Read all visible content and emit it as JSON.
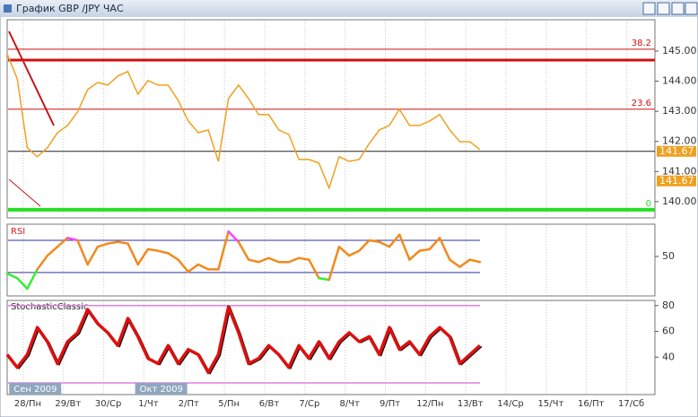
{
  "chart_data": [
    {
      "type": "line",
      "title": "График GBP /JPY  ЧАС",
      "x": [
        0,
        0.25,
        0.5,
        0.75,
        1,
        1.25,
        1.5,
        1.75,
        2,
        2.25,
        2.5,
        2.75,
        3,
        3.25,
        3.5,
        3.75,
        4,
        4.25,
        4.5,
        4.75,
        5,
        5.25,
        5.5,
        5.75,
        6,
        6.25,
        6.5,
        6.75,
        7,
        7.25,
        7.5,
        7.75,
        8,
        8.25,
        8.5,
        8.75,
        9,
        9.25,
        9.5,
        9.75,
        10,
        10.25,
        10.5,
        10.75,
        11,
        11.25,
        11.5,
        11.75
      ],
      "series": [
        {
          "color": "#f0a020",
          "values": [
            144.91,
            144.08,
            141.79,
            141.49,
            141.79,
            142.29,
            142.53,
            142.98,
            143.72,
            143.96,
            143.87,
            144.17,
            144.32,
            143.57,
            144.02,
            143.87,
            143.87,
            143.36,
            142.68,
            142.29,
            142.38,
            141.34,
            143.42,
            143.87,
            143.42,
            142.89,
            142.89,
            142.38,
            142.23,
            141.4,
            141.4,
            141.28,
            140.45,
            141.49,
            141.34,
            141.4,
            141.93,
            142.38,
            142.53,
            143.07,
            142.53,
            142.53,
            142.68,
            142.89,
            142.38,
            141.99,
            141.99,
            141.73
          ]
        }
      ],
      "xlim": [
        0,
        16.1
      ],
      "ylim": [
        139.46,
        146.04
      ],
      "yticks": [
        {
          "value": 140,
          "label": "140.00"
        },
        {
          "value": 141,
          "label": "141.00"
        },
        {
          "value": 142,
          "label": "142.00"
        },
        {
          "value": 143,
          "label": "143.00"
        },
        {
          "value": 144,
          "label": "144.00"
        },
        {
          "value": 145,
          "label": "145.00"
        }
      ],
      "levels": [
        {
          "value": 145.06,
          "label": "38.2",
          "color": "#d01010",
          "width": 1
        },
        {
          "value": 144.7,
          "color": "#d01010",
          "width": 3
        },
        {
          "value": 143.07,
          "label": "23.6",
          "color": "#d01010",
          "width": 1
        },
        {
          "value": 139.73,
          "label": "0",
          "color": "#22e022",
          "width": 4
        }
      ],
      "current_price": 141.67,
      "price_tags": [
        141.67,
        141.67
      ]
    },
    {
      "type": "rsi",
      "title": "RSI",
      "x": [
        0,
        0.25,
        0.5,
        0.75,
        1,
        1.25,
        1.5,
        1.75,
        2,
        2.25,
        2.5,
        2.75,
        3,
        3.25,
        3.5,
        3.75,
        4,
        4.25,
        4.5,
        4.75,
        5,
        5.25,
        5.5,
        5.75,
        6,
        6.25,
        6.5,
        6.75,
        7,
        7.25,
        7.5,
        7.75,
        8,
        8.25,
        8.5,
        8.75,
        9,
        9.25,
        9.5,
        9.75,
        10,
        10.25,
        10.5,
        10.75,
        11,
        11.25,
        11.5,
        11.75
      ],
      "values": [
        29,
        23,
        10,
        34,
        51,
        62,
        73,
        70,
        40,
        62,
        66,
        68,
        66,
        40,
        59,
        57,
        54,
        46,
        31,
        40,
        34,
        34,
        81,
        68,
        46,
        43,
        48,
        43,
        43,
        48,
        46,
        23,
        21,
        62,
        51,
        57,
        70,
        68,
        62,
        77,
        46,
        57,
        59,
        73,
        46,
        37,
        46,
        43
      ],
      "xlim": [
        0,
        16.1
      ],
      "ylim": [
        1,
        90
      ],
      "yticks": [
        50
      ],
      "levels": [
        30,
        70
      ],
      "level_color": "#3030a0",
      "colors": {
        "low": "#33ee33",
        "mid": "#f28a1d",
        "high": "#ff44ff"
      }
    },
    {
      "type": "stochastic",
      "title": "StochasticClassic",
      "x": [
        0,
        0.25,
        0.5,
        0.75,
        1,
        1.25,
        1.5,
        1.75,
        2,
        2.25,
        2.5,
        2.75,
        3,
        3.25,
        3.5,
        3.75,
        4,
        4.25,
        4.5,
        4.75,
        5,
        5.25,
        5.5,
        5.75,
        6,
        6.25,
        6.5,
        6.75,
        7,
        7.25,
        7.5,
        7.75,
        8,
        8.25,
        8.5,
        8.75,
        9,
        9.25,
        9.5,
        9.75,
        10,
        10.25,
        10.5,
        10.75,
        11,
        11.25,
        11.5,
        11.75
      ],
      "series": [
        {
          "color": "#dd1010",
          "values": [
            42,
            32,
            42,
            63,
            52,
            35,
            52,
            59,
            77,
            66,
            59,
            49,
            70,
            56,
            39,
            35,
            49,
            35,
            46,
            42,
            28,
            42,
            79,
            59,
            35,
            39,
            49,
            42,
            32,
            49,
            39,
            52,
            39,
            52,
            59,
            52,
            56,
            42,
            63,
            46,
            52,
            42,
            56,
            63,
            56,
            35,
            42,
            49
          ]
        }
      ],
      "xlim": [
        0,
        16.1
      ],
      "ylim": [
        11,
        84
      ],
      "yticks": [
        40,
        60,
        80
      ],
      "levels": [
        20,
        80
      ],
      "level_color": "#e080e0",
      "xticks": [
        {
          "value": 0.4,
          "label": "28/Пн"
        },
        {
          "value": 1.4,
          "label": "29/Вт"
        },
        {
          "value": 2.4,
          "label": "30/Ср"
        },
        {
          "value": 3.4,
          "label": "1/Чт"
        },
        {
          "value": 4.4,
          "label": "2/Пт"
        },
        {
          "value": 5.4,
          "label": "5/Пн"
        },
        {
          "value": 6.4,
          "label": "6/Вт"
        },
        {
          "value": 7.4,
          "label": "7/Ср"
        },
        {
          "value": 8.4,
          "label": "8/Чт"
        },
        {
          "value": 9.4,
          "label": "9/Пт"
        },
        {
          "value": 10.4,
          "label": "12/Пн"
        },
        {
          "value": 11.4,
          "label": "13/Вт"
        },
        {
          "value": 12.4,
          "label": "14/Ср"
        },
        {
          "value": 13.4,
          "label": "15/Чт"
        },
        {
          "value": 14.4,
          "label": "16/Пт"
        },
        {
          "value": 15.4,
          "label": "17/Сб"
        }
      ],
      "month_labels": [
        {
          "value": 0.05,
          "label": "Сен 2009"
        },
        {
          "value": 3.18,
          "label": "Окт 2009"
        }
      ]
    }
  ]
}
